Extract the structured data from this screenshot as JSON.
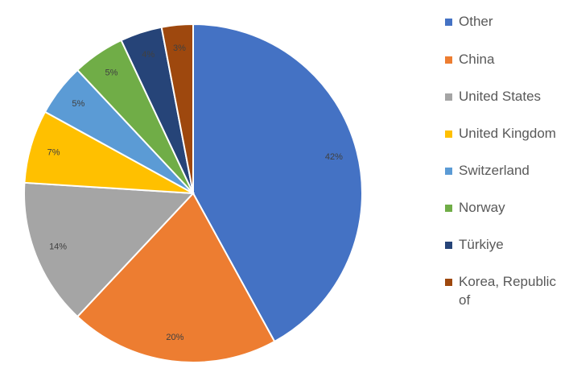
{
  "chart_data": {
    "type": "pie",
    "title": "",
    "legend_position": "right",
    "slices": [
      {
        "label": "Other",
        "value": 42,
        "display": "42%",
        "color": "#4472C4"
      },
      {
        "label": "China",
        "value": 20,
        "display": "20%",
        "color": "#ED7D31"
      },
      {
        "label": "United States",
        "value": 14,
        "display": "14%",
        "color": "#A5A5A5"
      },
      {
        "label": "United Kingdom",
        "value": 7,
        "display": "7%",
        "color": "#FFC000"
      },
      {
        "label": "Switzerland",
        "value": 5,
        "display": "5%",
        "color": "#5B9BD5"
      },
      {
        "label": "Norway",
        "value": 5,
        "display": "5%",
        "color": "#70AD47"
      },
      {
        "label": "Türkiye",
        "value": 4,
        "display": "4%",
        "color": "#264478"
      },
      {
        "label": "Korea, Republic of",
        "value": 3,
        "display": "3%",
        "color": "#9E480E"
      }
    ]
  }
}
